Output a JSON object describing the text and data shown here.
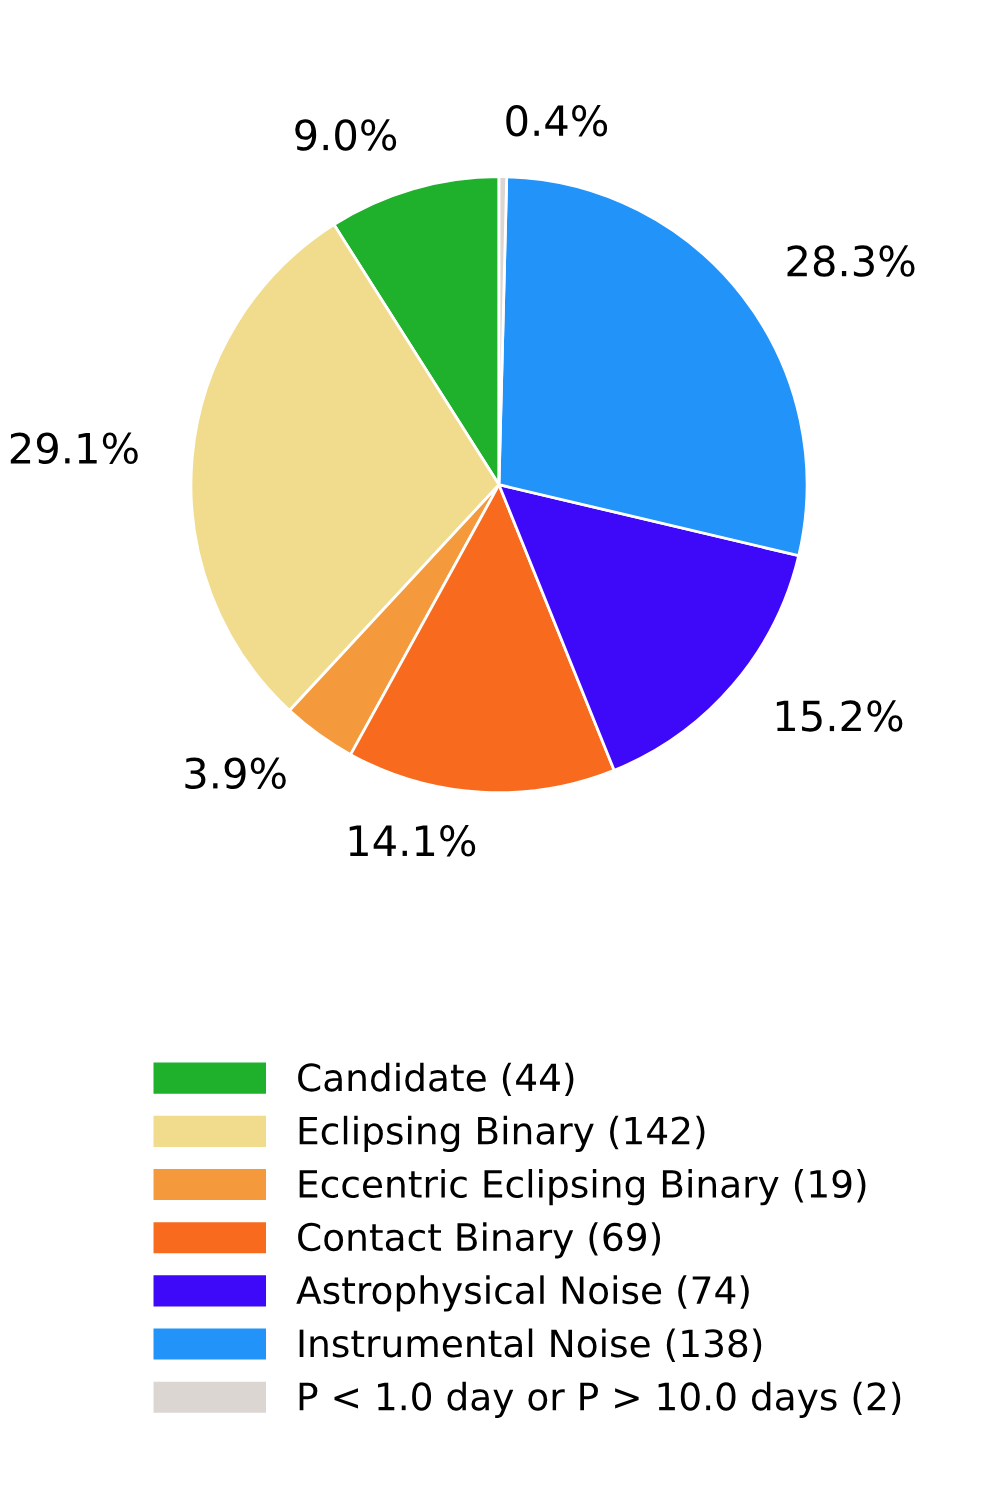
{
  "chart_data": {
    "type": "pie",
    "categories": [
      "Candidate (44)",
      "Eclipsing Binary (142)",
      "Eccentric Eclipsing Binary (19)",
      "Contact Binary (69)",
      "Astrophysical Noise (74)",
      "Instrumental Noise (138)",
      "P < 1.0 day or P > 10.0 days (2)"
    ],
    "values": [
      9.0,
      29.1,
      3.9,
      14.1,
      15.2,
      28.3,
      0.4
    ],
    "value_labels": [
      "9.0%",
      "29.1%",
      "3.9%",
      "14.1%",
      "15.2%",
      "28.3%",
      "0.4%"
    ],
    "colors": [
      "#1fb02c",
      "#f0dc8c",
      "#f59a3c",
      "#f86b1f",
      "#3e08f8",
      "#2293f8",
      "#dcd6d2"
    ],
    "legend": "bottom"
  }
}
